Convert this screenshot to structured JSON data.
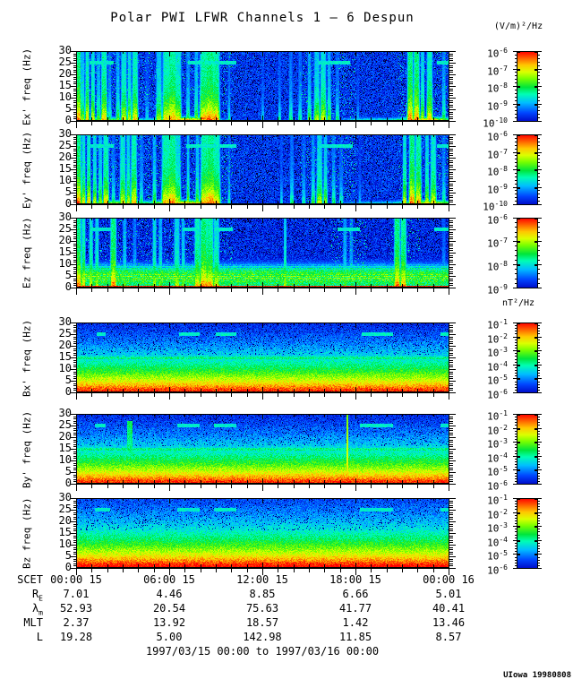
{
  "credit": "UIowa 19980808",
  "footer_range": "1997/03/15 00:00 to 1997/03/16 00:00",
  "chart_data": {
    "type": "heatmap",
    "title": "Polar PWI LFWR Channels 1 — 6 Despun",
    "electric_unit": "(V/m)²/Hz",
    "magnetic_unit": "nT²/Hz",
    "time_axis": {
      "name": "SCET",
      "hours_span": 24,
      "major_tick_hours": 6,
      "minor_tick_hours": 1,
      "tick_labels": [
        "00:00 15",
        "06:00 15",
        "12:00 15",
        "18:00 15",
        "00:00 16"
      ]
    },
    "freq_axis": {
      "unit": "Hz",
      "range": [
        0,
        30
      ],
      "tick_values": [
        0,
        5,
        10,
        15,
        20,
        25,
        30
      ],
      "minor_step": 1
    },
    "panels": [
      {
        "id": "ex",
        "label": "Ex' freq (Hz)",
        "kind": "electric",
        "colorbar_exponents": [
          -6,
          -7,
          -8,
          -9,
          -10
        ],
        "dashes": [
          [
            0.035,
            0.1
          ],
          [
            0.3,
            0.335
          ],
          [
            0.345,
            0.43
          ],
          [
            0.65,
            0.735
          ],
          [
            0.967,
            1.0
          ]
        ],
        "busy": [
          [
            0.0,
            0.42
          ],
          [
            0.6,
            0.75
          ],
          [
            0.86,
            1.0
          ]
        ],
        "bottom": [
          [
            0.08,
            0.12,
            0.75
          ],
          [
            0.3,
            0.09,
            0.95
          ],
          [
            0.55,
            0.15,
            0.3
          ],
          [
            0.78,
            0.1,
            0.5
          ],
          [
            0.95,
            0.09,
            0.92
          ]
        ],
        "bursts": [
          [
            0.006,
            3,
            1
          ],
          [
            0.018,
            2,
            0.75
          ],
          [
            0.03,
            2,
            0.9
          ],
          [
            0.045,
            2,
            0.85
          ],
          [
            0.06,
            2,
            0.7
          ],
          [
            0.075,
            3,
            0.92
          ],
          [
            0.09,
            2,
            0.6
          ],
          [
            0.112,
            2,
            0.7
          ],
          [
            0.128,
            3,
            0.85
          ],
          [
            0.143,
            2,
            0.8
          ],
          [
            0.158,
            3,
            0.9
          ],
          [
            0.19,
            2,
            0.5
          ],
          [
            0.222,
            3,
            0.78
          ],
          [
            0.242,
            4,
            0.9
          ],
          [
            0.258,
            5,
            0.96
          ],
          [
            0.274,
            3,
            0.85
          ],
          [
            0.3,
            2,
            0.65
          ],
          [
            0.322,
            2,
            0.72
          ],
          [
            0.342,
            4,
            0.95
          ],
          [
            0.358,
            5,
            1
          ],
          [
            0.374,
            4,
            0.95
          ],
          [
            0.41,
            1.5,
            0.55
          ],
          [
            0.5,
            1.5,
            0.5
          ],
          [
            0.545,
            1.5,
            0.55
          ],
          [
            0.575,
            2,
            0.6
          ],
          [
            0.6,
            2,
            0.58
          ],
          [
            0.625,
            2,
            0.68
          ],
          [
            0.645,
            3,
            0.78
          ],
          [
            0.662,
            3,
            0.85
          ],
          [
            0.678,
            2,
            0.7
          ],
          [
            0.7,
            2,
            0.58
          ],
          [
            0.755,
            1.5,
            0.45
          ],
          [
            0.895,
            3,
            1
          ],
          [
            0.912,
            3,
            1
          ],
          [
            0.928,
            2,
            0.8
          ],
          [
            0.947,
            3,
            0.9
          ],
          [
            0.985,
            2,
            0.65
          ]
        ]
      },
      {
        "id": "ey",
        "label": "Ey' freq (Hz)",
        "kind": "electric",
        "colorbar_exponents": [
          -6,
          -7,
          -8,
          -9,
          -10
        ],
        "dashes": [
          [
            0.03,
            0.1
          ],
          [
            0.295,
            0.43
          ],
          [
            0.655,
            0.74
          ],
          [
            0.967,
            1.0
          ]
        ],
        "busy": [
          [
            0.0,
            0.42
          ],
          [
            0.6,
            0.75
          ],
          [
            0.86,
            1.0
          ]
        ],
        "bottom": [
          [
            0.1,
            0.12,
            0.8
          ],
          [
            0.3,
            0.09,
            0.95
          ],
          [
            0.55,
            0.15,
            0.25
          ],
          [
            0.78,
            0.1,
            0.45
          ],
          [
            0.95,
            0.09,
            0.9
          ]
        ],
        "bursts": [
          [
            0.006,
            3,
            1
          ],
          [
            0.02,
            2,
            0.85
          ],
          [
            0.034,
            2,
            0.9
          ],
          [
            0.05,
            2,
            0.8
          ],
          [
            0.065,
            2,
            0.75
          ],
          [
            0.08,
            3,
            0.9
          ],
          [
            0.1,
            2,
            0.6
          ],
          [
            0.125,
            3,
            0.85
          ],
          [
            0.14,
            2,
            0.8
          ],
          [
            0.155,
            3,
            0.92
          ],
          [
            0.175,
            2,
            0.6
          ],
          [
            0.21,
            2,
            0.7
          ],
          [
            0.24,
            4,
            0.92
          ],
          [
            0.257,
            5,
            0.97
          ],
          [
            0.273,
            3,
            0.8
          ],
          [
            0.3,
            1.5,
            0.75
          ],
          [
            0.325,
            2,
            0.72
          ],
          [
            0.344,
            4,
            0.95
          ],
          [
            0.36,
            5,
            1
          ],
          [
            0.376,
            4,
            0.9
          ],
          [
            0.41,
            1.5,
            0.55
          ],
          [
            0.55,
            1.5,
            0.5
          ],
          [
            0.578,
            2,
            0.6
          ],
          [
            0.61,
            2,
            0.55
          ],
          [
            0.635,
            2,
            0.65
          ],
          [
            0.652,
            3,
            0.8
          ],
          [
            0.668,
            2,
            0.75
          ],
          [
            0.69,
            2,
            0.6
          ],
          [
            0.71,
            2,
            0.55
          ],
          [
            0.76,
            1.5,
            0.45
          ],
          [
            0.88,
            2,
            0.85
          ],
          [
            0.9,
            3,
            1
          ],
          [
            0.917,
            3,
            0.95
          ],
          [
            0.94,
            2,
            0.8
          ],
          [
            0.957,
            3,
            0.85
          ],
          [
            0.985,
            2,
            0.6
          ]
        ]
      },
      {
        "id": "ez",
        "label": "Ez freq (Hz)",
        "kind": "electric-band",
        "colorbar_exponents": [
          -6,
          -7,
          -8,
          -9
        ],
        "dashes": [
          [
            0.04,
            0.095
          ],
          [
            0.285,
            0.33
          ],
          [
            0.37,
            0.42
          ],
          [
            0.7,
            0.76
          ],
          [
            0.96,
            1.0
          ]
        ],
        "busy": [
          [
            0.0,
            0.42
          ],
          [
            0.68,
            0.78
          ],
          [
            0.84,
            0.92
          ]
        ],
        "bottom": [
          [
            0.5,
            2.0,
            0.55
          ]
        ],
        "bursts": [
          [
            0.006,
            3,
            1
          ],
          [
            0.02,
            2,
            0.9
          ],
          [
            0.04,
            2,
            0.85
          ],
          [
            0.056,
            2,
            0.8
          ],
          [
            0.1,
            3,
            1
          ],
          [
            0.13,
            2,
            0.7
          ],
          [
            0.157,
            2,
            0.6
          ],
          [
            0.21,
            2,
            0.8
          ],
          [
            0.226,
            2,
            0.72
          ],
          [
            0.27,
            3,
            0.8
          ],
          [
            0.287,
            2,
            0.72
          ],
          [
            0.325,
            3,
            0.9
          ],
          [
            0.342,
            4,
            1
          ],
          [
            0.358,
            4,
            0.95
          ],
          [
            0.376,
            3,
            0.85
          ],
          [
            0.56,
            1.5,
            0.8
          ],
          [
            0.72,
            2,
            0.68
          ],
          [
            0.737,
            2,
            0.62
          ],
          [
            0.86,
            3,
            1
          ],
          [
            0.877,
            3,
            0.95
          ],
          [
            0.985,
            2,
            0.55
          ]
        ]
      },
      {
        "id": "bx",
        "label": "Bx' freq (Hz)",
        "kind": "magnetic",
        "colorbar_exponents": [
          -1,
          -2,
          -3,
          -4,
          -5,
          -6
        ],
        "line15": true,
        "dashes": [
          [
            0.055,
            0.08
          ],
          [
            0.275,
            0.33
          ],
          [
            0.375,
            0.43
          ],
          [
            0.765,
            0.85
          ],
          [
            0.975,
            1.0
          ]
        ]
      },
      {
        "id": "by",
        "label": "By' freq (Hz)",
        "kind": "magnetic",
        "colorbar_exponents": [
          -1,
          -2,
          -3,
          -4,
          -5,
          -6
        ],
        "line15": true,
        "vline": [
          0.727,
          0.8
        ],
        "blob": [
          0.145,
          22,
          0.52
        ],
        "dashes": [
          [
            0.05,
            0.08
          ],
          [
            0.27,
            0.33
          ],
          [
            0.37,
            0.43
          ],
          [
            0.76,
            0.85
          ],
          [
            0.975,
            1.0
          ]
        ]
      },
      {
        "id": "bz",
        "label": "Bz freq (Hz)",
        "kind": "magnetic",
        "colorbar_exponents": [
          -1,
          -2,
          -3,
          -4,
          -5,
          -6
        ],
        "boost": 0.04,
        "dashes": [
          [
            0.05,
            0.09
          ],
          [
            0.27,
            0.33
          ],
          [
            0.37,
            0.43
          ],
          [
            0.76,
            0.85
          ],
          [
            0.975,
            1.0
          ]
        ]
      }
    ],
    "ephemeris_rows": [
      {
        "key": "scet",
        "label": "SCET",
        "sub": "",
        "values": [
          "00:00 15",
          "06:00 15",
          "12:00 15",
          "18:00 15",
          "00:00 16"
        ]
      },
      {
        "key": "re",
        "label": "R",
        "sub": "E",
        "values": [
          "7.01",
          "4.46",
          "8.85",
          "6.66",
          "5.01"
        ]
      },
      {
        "key": "lambda-m",
        "label": "λ",
        "sub": "m",
        "values": [
          "52.93",
          "20.54",
          "75.63",
          "41.77",
          "40.41"
        ]
      },
      {
        "key": "mlt",
        "label": "MLT",
        "sub": "",
        "values": [
          "2.37",
          "13.92",
          "18.57",
          "1.42",
          "13.46"
        ]
      },
      {
        "key": "l",
        "label": "L",
        "sub": "",
        "values": [
          "19.28",
          "5.00",
          "142.98",
          "11.85",
          "8.57"
        ]
      }
    ]
  }
}
